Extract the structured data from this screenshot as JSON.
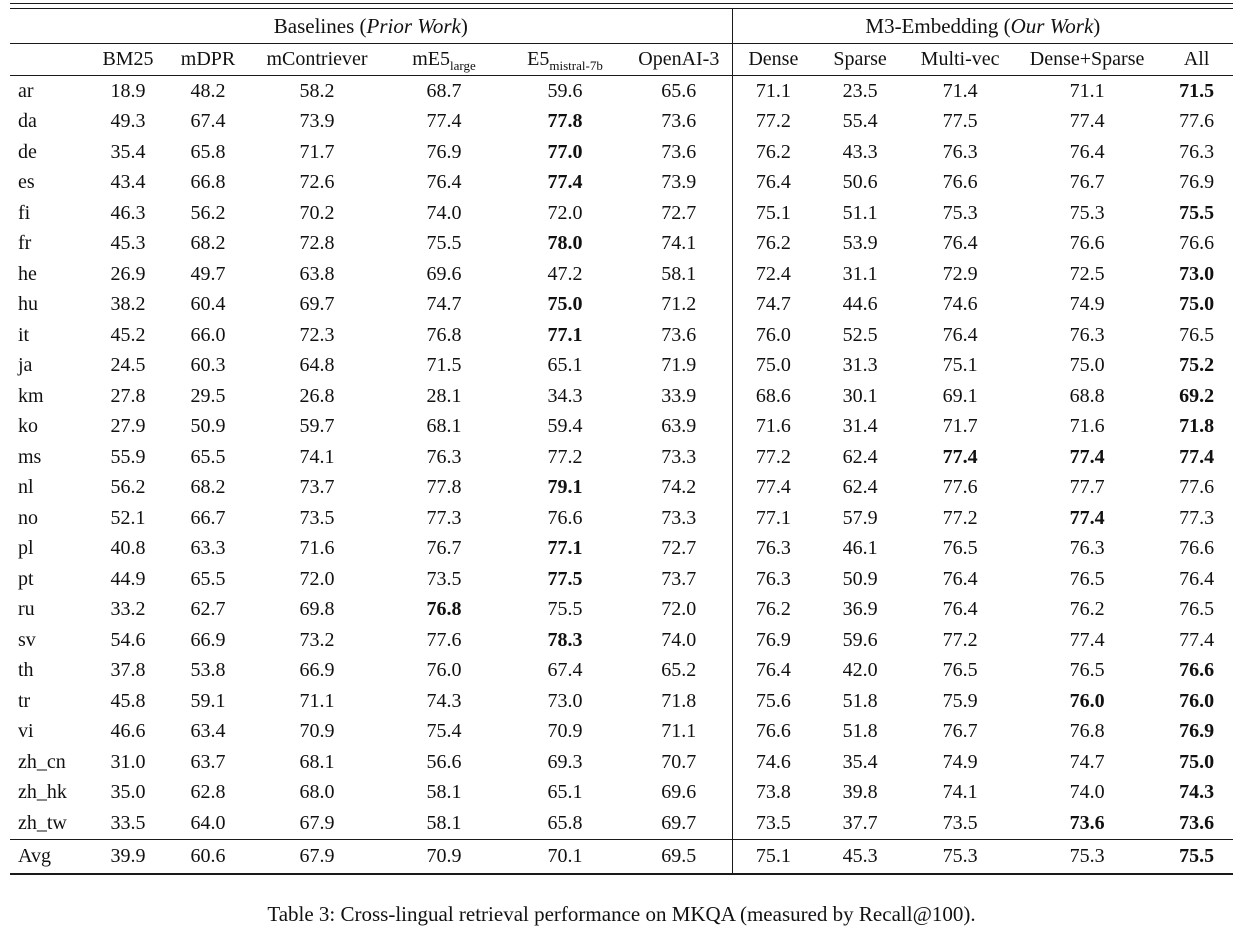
{
  "page": {
    "caption": "Table 3: Cross-lingual retrieval performance on MKQA (measured by Recall@100)."
  },
  "table": {
    "groups": [
      {
        "prefix": "Baselines (",
        "em": "Prior Work",
        "suffix": ")"
      },
      {
        "prefix": "M3-Embedding (",
        "em": "Our Work",
        "suffix": ")"
      }
    ],
    "columns": [
      {
        "label": "BM25"
      },
      {
        "label": "mDPR"
      },
      {
        "label": "mContriever"
      },
      {
        "label": "mE5",
        "sub": "large"
      },
      {
        "label": "E5",
        "sub": "mistral-7b"
      },
      {
        "label": "OpenAI-3"
      },
      {
        "label": "Dense"
      },
      {
        "label": "Sparse"
      },
      {
        "label": "Multi-vec"
      },
      {
        "label": "Dense+Sparse"
      },
      {
        "label": "All"
      }
    ],
    "rows": [
      {
        "lang": "ar",
        "values": [
          "18.9",
          "48.2",
          "58.2",
          "68.7",
          "59.6",
          "65.6",
          "71.1",
          "23.5",
          "71.4",
          "71.1",
          "71.5"
        ],
        "bold": [
          10
        ]
      },
      {
        "lang": "da",
        "values": [
          "49.3",
          "67.4",
          "73.9",
          "77.4",
          "77.8",
          "73.6",
          "77.2",
          "55.4",
          "77.5",
          "77.4",
          "77.6"
        ],
        "bold": [
          4
        ]
      },
      {
        "lang": "de",
        "values": [
          "35.4",
          "65.8",
          "71.7",
          "76.9",
          "77.0",
          "73.6",
          "76.2",
          "43.3",
          "76.3",
          "76.4",
          "76.3"
        ],
        "bold": [
          4
        ]
      },
      {
        "lang": "es",
        "values": [
          "43.4",
          "66.8",
          "72.6",
          "76.4",
          "77.4",
          "73.9",
          "76.4",
          "50.6",
          "76.6",
          "76.7",
          "76.9"
        ],
        "bold": [
          4
        ]
      },
      {
        "lang": "fi",
        "values": [
          "46.3",
          "56.2",
          "70.2",
          "74.0",
          "72.0",
          "72.7",
          "75.1",
          "51.1",
          "75.3",
          "75.3",
          "75.5"
        ],
        "bold": [
          10
        ]
      },
      {
        "lang": "fr",
        "values": [
          "45.3",
          "68.2",
          "72.8",
          "75.5",
          "78.0",
          "74.1",
          "76.2",
          "53.9",
          "76.4",
          "76.6",
          "76.6"
        ],
        "bold": [
          4
        ]
      },
      {
        "lang": "he",
        "values": [
          "26.9",
          "49.7",
          "63.8",
          "69.6",
          "47.2",
          "58.1",
          "72.4",
          "31.1",
          "72.9",
          "72.5",
          "73.0"
        ],
        "bold": [
          10
        ]
      },
      {
        "lang": "hu",
        "values": [
          "38.2",
          "60.4",
          "69.7",
          "74.7",
          "75.0",
          "71.2",
          "74.7",
          "44.6",
          "74.6",
          "74.9",
          "75.0"
        ],
        "bold": [
          4,
          10
        ]
      },
      {
        "lang": "it",
        "values": [
          "45.2",
          "66.0",
          "72.3",
          "76.8",
          "77.1",
          "73.6",
          "76.0",
          "52.5",
          "76.4",
          "76.3",
          "76.5"
        ],
        "bold": [
          4
        ]
      },
      {
        "lang": "ja",
        "values": [
          "24.5",
          "60.3",
          "64.8",
          "71.5",
          "65.1",
          "71.9",
          "75.0",
          "31.3",
          "75.1",
          "75.0",
          "75.2"
        ],
        "bold": [
          10
        ]
      },
      {
        "lang": "km",
        "values": [
          "27.8",
          "29.5",
          "26.8",
          "28.1",
          "34.3",
          "33.9",
          "68.6",
          "30.1",
          "69.1",
          "68.8",
          "69.2"
        ],
        "bold": [
          10
        ]
      },
      {
        "lang": "ko",
        "values": [
          "27.9",
          "50.9",
          "59.7",
          "68.1",
          "59.4",
          "63.9",
          "71.6",
          "31.4",
          "71.7",
          "71.6",
          "71.8"
        ],
        "bold": [
          10
        ]
      },
      {
        "lang": "ms",
        "values": [
          "55.9",
          "65.5",
          "74.1",
          "76.3",
          "77.2",
          "73.3",
          "77.2",
          "62.4",
          "77.4",
          "77.4",
          "77.4"
        ],
        "bold": [
          8,
          9,
          10
        ]
      },
      {
        "lang": "nl",
        "values": [
          "56.2",
          "68.2",
          "73.7",
          "77.8",
          "79.1",
          "74.2",
          "77.4",
          "62.4",
          "77.6",
          "77.7",
          "77.6"
        ],
        "bold": [
          4
        ]
      },
      {
        "lang": "no",
        "values": [
          "52.1",
          "66.7",
          "73.5",
          "77.3",
          "76.6",
          "73.3",
          "77.1",
          "57.9",
          "77.2",
          "77.4",
          "77.3"
        ],
        "bold": [
          9
        ]
      },
      {
        "lang": "pl",
        "values": [
          "40.8",
          "63.3",
          "71.6",
          "76.7",
          "77.1",
          "72.7",
          "76.3",
          "46.1",
          "76.5",
          "76.3",
          "76.6"
        ],
        "bold": [
          4
        ]
      },
      {
        "lang": "pt",
        "values": [
          "44.9",
          "65.5",
          "72.0",
          "73.5",
          "77.5",
          "73.7",
          "76.3",
          "50.9",
          "76.4",
          "76.5",
          "76.4"
        ],
        "bold": [
          4
        ]
      },
      {
        "lang": "ru",
        "values": [
          "33.2",
          "62.7",
          "69.8",
          "76.8",
          "75.5",
          "72.0",
          "76.2",
          "36.9",
          "76.4",
          "76.2",
          "76.5"
        ],
        "bold": [
          3
        ]
      },
      {
        "lang": "sv",
        "values": [
          "54.6",
          "66.9",
          "73.2",
          "77.6",
          "78.3",
          "74.0",
          "76.9",
          "59.6",
          "77.2",
          "77.4",
          "77.4"
        ],
        "bold": [
          4
        ]
      },
      {
        "lang": "th",
        "values": [
          "37.8",
          "53.8",
          "66.9",
          "76.0",
          "67.4",
          "65.2",
          "76.4",
          "42.0",
          "76.5",
          "76.5",
          "76.6"
        ],
        "bold": [
          10
        ]
      },
      {
        "lang": "tr",
        "values": [
          "45.8",
          "59.1",
          "71.1",
          "74.3",
          "73.0",
          "71.8",
          "75.6",
          "51.8",
          "75.9",
          "76.0",
          "76.0"
        ],
        "bold": [
          9,
          10
        ]
      },
      {
        "lang": "vi",
        "values": [
          "46.6",
          "63.4",
          "70.9",
          "75.4",
          "70.9",
          "71.1",
          "76.6",
          "51.8",
          "76.7",
          "76.8",
          "76.9"
        ],
        "bold": [
          10
        ]
      },
      {
        "lang": "zh_cn",
        "values": [
          "31.0",
          "63.7",
          "68.1",
          "56.6",
          "69.3",
          "70.7",
          "74.6",
          "35.4",
          "74.9",
          "74.7",
          "75.0"
        ],
        "bold": [
          10
        ]
      },
      {
        "lang": "zh_hk",
        "values": [
          "35.0",
          "62.8",
          "68.0",
          "58.1",
          "65.1",
          "69.6",
          "73.8",
          "39.8",
          "74.1",
          "74.0",
          "74.3"
        ],
        "bold": [
          10
        ]
      },
      {
        "lang": "zh_tw",
        "values": [
          "33.5",
          "64.0",
          "67.9",
          "58.1",
          "65.8",
          "69.7",
          "73.5",
          "37.7",
          "73.5",
          "73.6",
          "73.6"
        ],
        "bold": [
          9,
          10
        ]
      }
    ],
    "avg_row": {
      "lang": "Avg",
      "values": [
        "39.9",
        "60.6",
        "67.9",
        "70.9",
        "70.1",
        "69.5",
        "75.1",
        "45.3",
        "75.3",
        "75.3",
        "75.5"
      ],
      "bold": [
        10
      ]
    }
  }
}
